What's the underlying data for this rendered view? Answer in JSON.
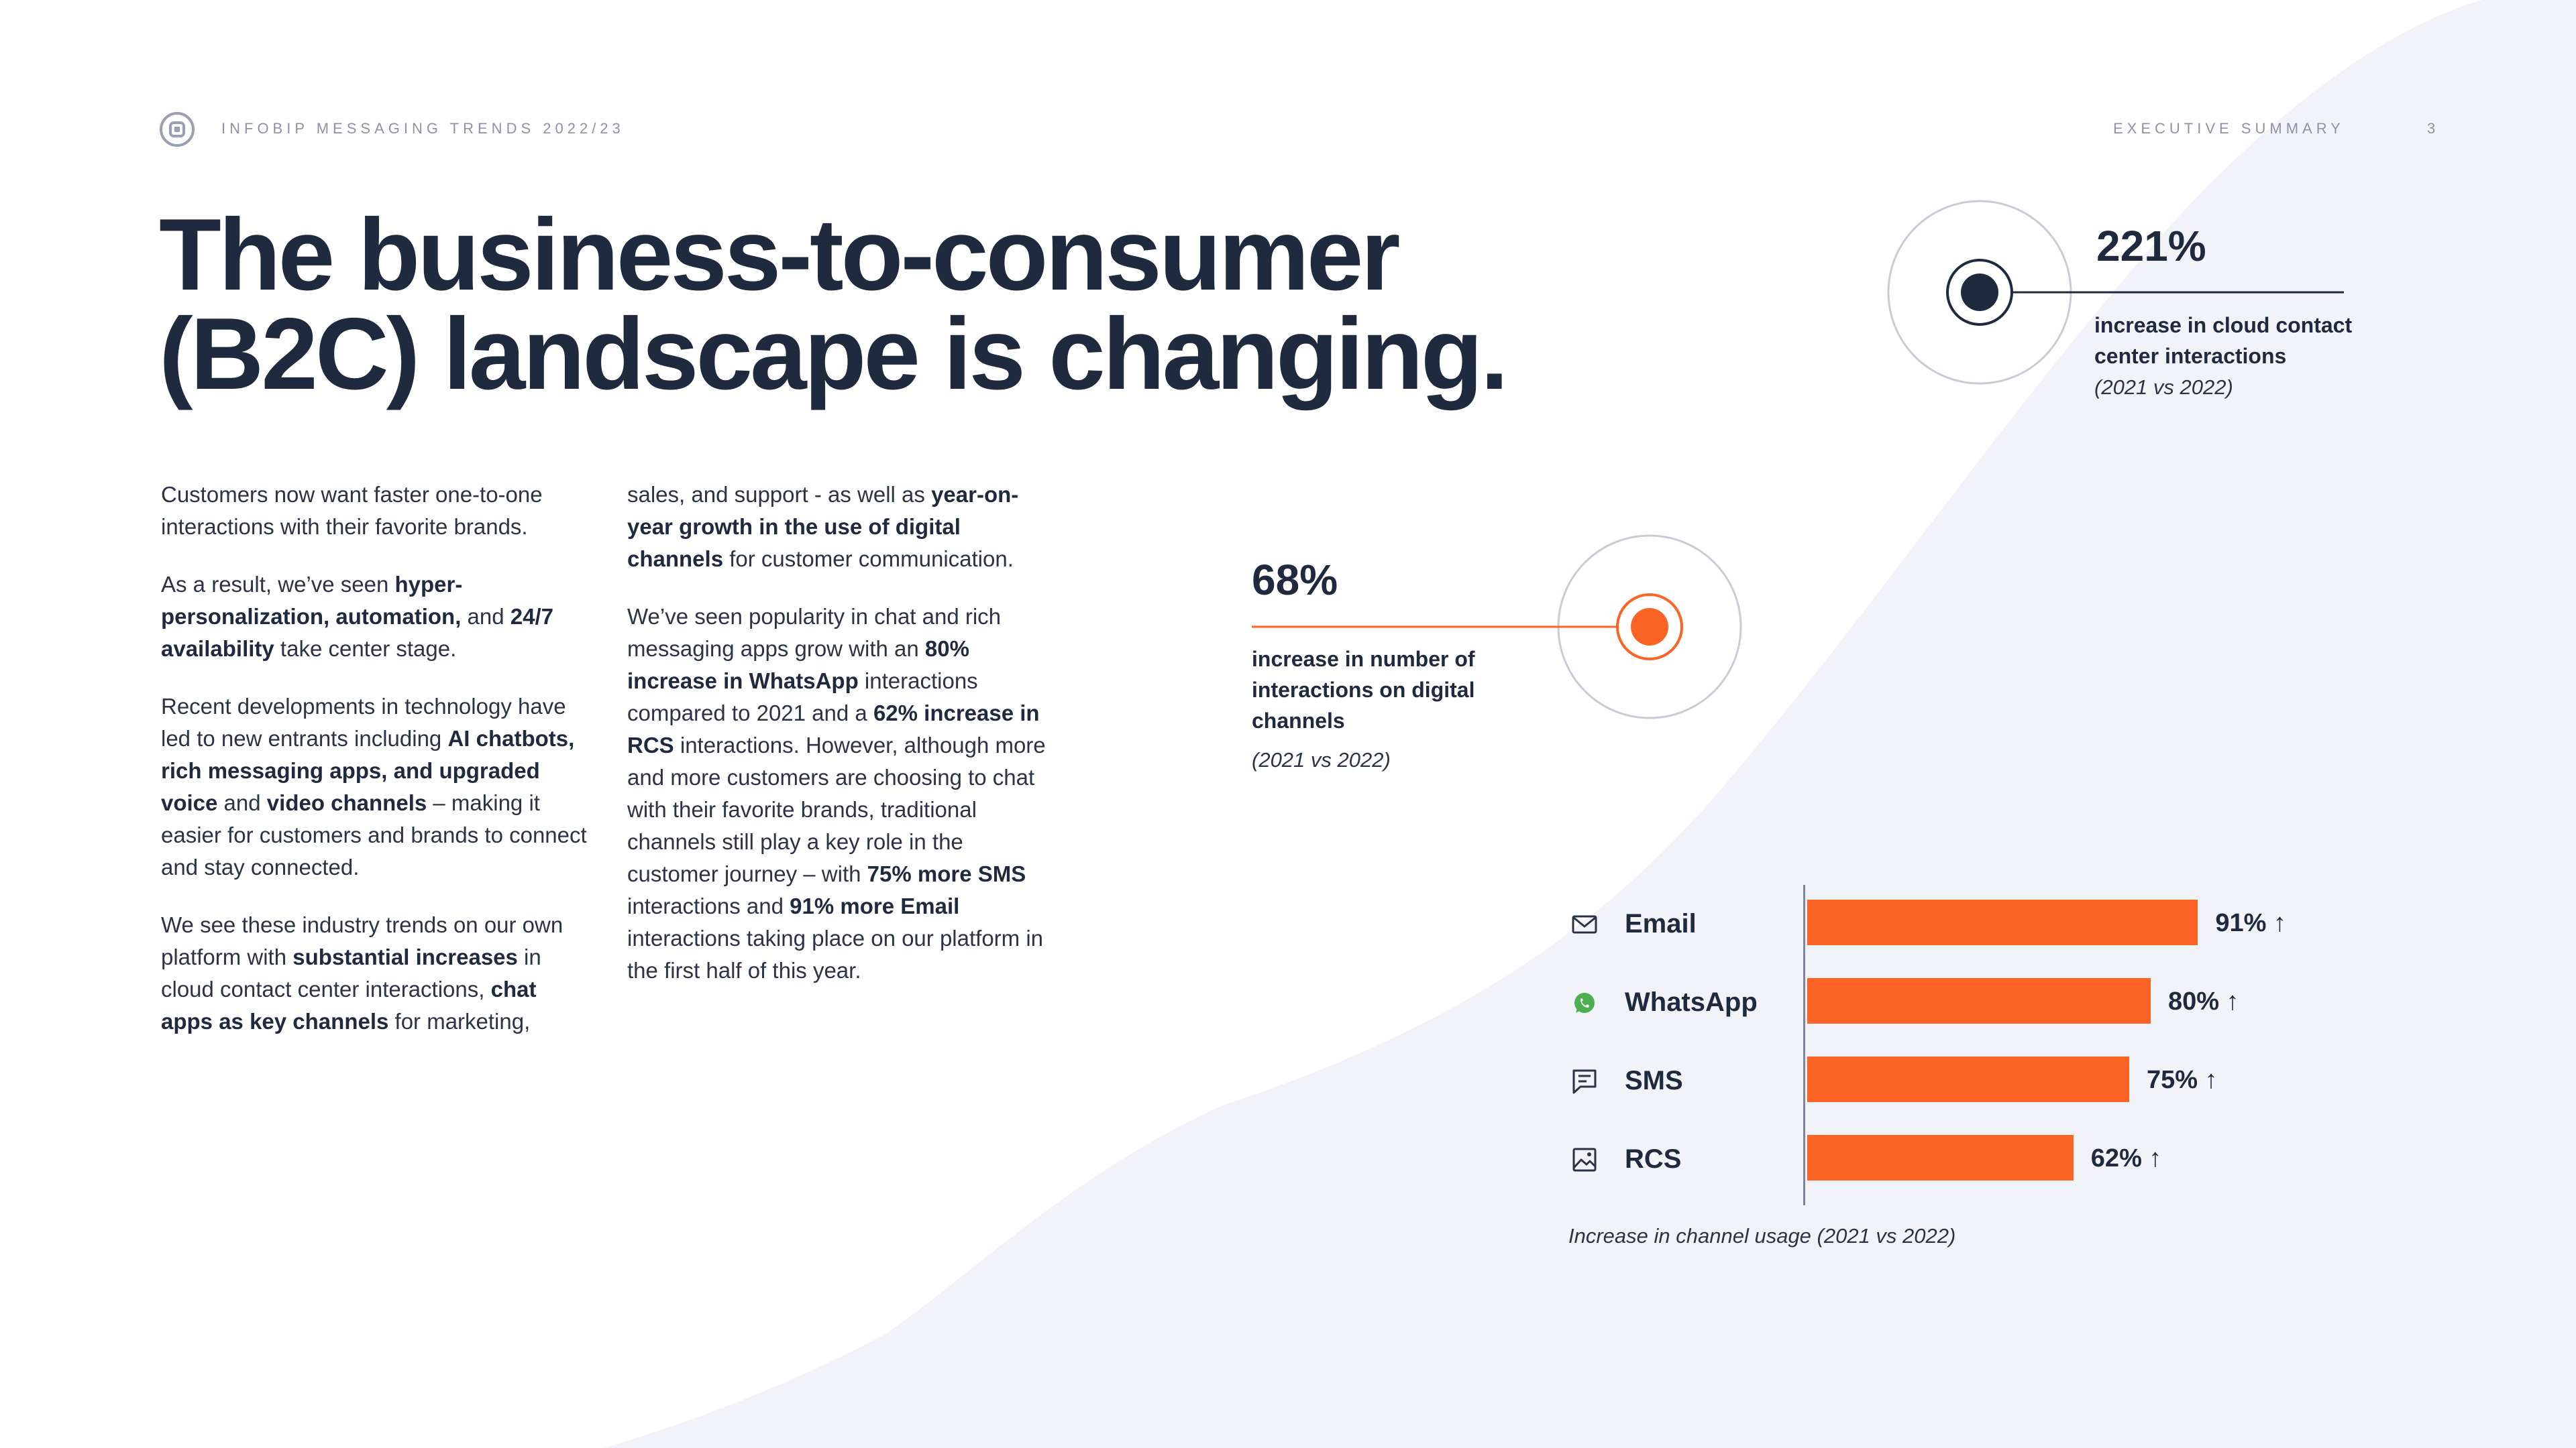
{
  "header": {
    "publication": "INFOBIP MESSAGING TRENDS 2022/23",
    "section": "EXECUTIVE SUMMARY",
    "page_number": "3"
  },
  "headline": {
    "line1": "The business-to-consumer",
    "line2": "(B2C) landscape is changing."
  },
  "col1": [
    [
      {
        "t": "Customers now want faster one-to-one interactions with their favorite brands.",
        "b": false
      }
    ],
    [
      {
        "t": "As a result, we’ve seen ",
        "b": false
      },
      {
        "t": "hyper-personalization, automation,",
        "b": true
      },
      {
        "t": " and ",
        "b": false
      },
      {
        "t": "24/7 availability",
        "b": true
      },
      {
        "t": " take center stage.",
        "b": false
      }
    ],
    [
      {
        "t": "Recent developments in technology have led to new entrants including ",
        "b": false
      },
      {
        "t": "AI chatbots, rich messaging apps, and upgraded voice",
        "b": true
      },
      {
        "t": " and ",
        "b": false
      },
      {
        "t": "video channels",
        "b": true
      },
      {
        "t": " – making it easier for customers and brands to connect and stay connected.",
        "b": false
      }
    ],
    [
      {
        "t": "We see these industry trends on our own platform with ",
        "b": false
      },
      {
        "t": "substantial increases",
        "b": true
      },
      {
        "t": " in cloud contact center interactions, ",
        "b": false
      },
      {
        "t": "chat apps as key channels",
        "b": true
      },
      {
        "t": " for marketing,",
        "b": false
      }
    ]
  ],
  "col2": [
    [
      {
        "t": "sales, and support - as well as ",
        "b": false
      },
      {
        "t": "year-on-year growth in the use of digital channels",
        "b": true
      },
      {
        "t": " for customer communication.",
        "b": false
      }
    ],
    [
      {
        "t": "We’ve seen popularity in chat and rich messaging apps grow with an ",
        "b": false
      },
      {
        "t": "80% increase in WhatsApp",
        "b": true
      },
      {
        "t": " interactions compared to 2021 and a ",
        "b": false
      },
      {
        "t": "62% increase in RCS",
        "b": true
      },
      {
        "t": " interactions. However, although more and more customers are choosing to chat with their favorite brands, traditional channels still play a key role in the customer journey – with ",
        "b": false
      },
      {
        "t": "75% more SMS",
        "b": true
      },
      {
        "t": " interactions and ",
        "b": false
      },
      {
        "t": "91% more Email",
        "b": true
      },
      {
        "t": " interactions taking place on our platform in the first half of this year.",
        "b": false
      }
    ]
  ],
  "stats": {
    "cloud": {
      "value": "221%",
      "description": "increase in cloud contact center interactions",
      "period": "(2021 vs 2022)"
    },
    "digital": {
      "value": "68%",
      "description": "increase in number of interactions on digital channels",
      "period": "(2021 vs 2022)"
    }
  },
  "colors": {
    "accent": "#fb6424",
    "dark": "#1f2a3f",
    "background_shape": "#f1f3f8",
    "whatsapp_green": "#4caf50"
  },
  "chart_data": {
    "type": "bar",
    "orientation": "horizontal",
    "categories": [
      "Email",
      "WhatsApp",
      "SMS",
      "RCS"
    ],
    "icons": [
      "mail-icon",
      "whatsapp-icon",
      "chat-icon",
      "image-icon"
    ],
    "values": [
      91,
      80,
      75,
      62
    ],
    "value_labels": [
      "91% ↑",
      "80% ↑",
      "75% ↑",
      "62% ↑"
    ],
    "unit": "%",
    "xlim": [
      0,
      100
    ],
    "caption": "Increase in channel usage (2021 vs 2022)",
    "grid": false,
    "legend": "none"
  }
}
